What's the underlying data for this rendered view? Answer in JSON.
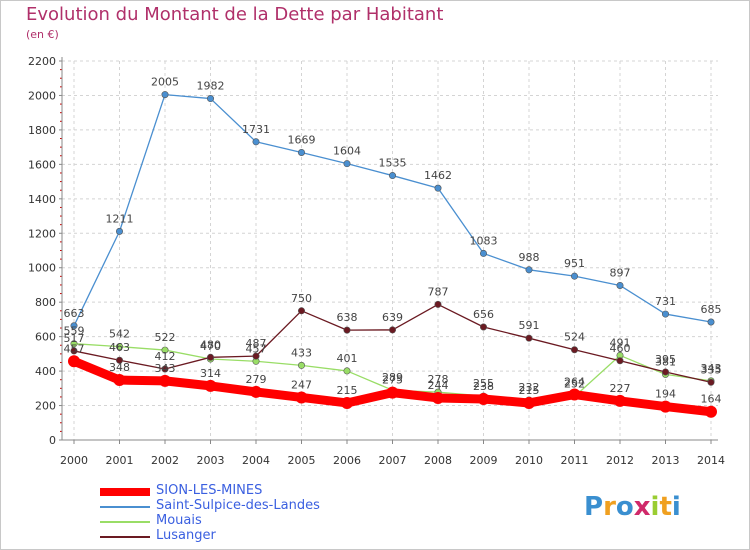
{
  "title": "Evolution du Montant de la Dette par Habitant",
  "unit": "(en €)",
  "logo_text": "Proxiti",
  "chart_data": {
    "type": "line",
    "title": "Evolution du Montant de la Dette par Habitant",
    "ylabel": "(en €)",
    "xlabel": "",
    "x": [
      "2000",
      "2001",
      "2002",
      "2003",
      "2004",
      "2005",
      "2006",
      "2007",
      "2008",
      "2009",
      "2010",
      "2011",
      "2012",
      "2013",
      "2014"
    ],
    "ylim": [
      0,
      2200
    ],
    "yticks": [
      0,
      200,
      400,
      600,
      800,
      1000,
      1200,
      1400,
      1600,
      1800,
      2000,
      2200
    ],
    "grid": true,
    "legend_position": "bottom-left",
    "series": [
      {
        "name": "SION-LES-MINES",
        "color": "#ff0000",
        "values": [
          457,
          348,
          343,
          314,
          279,
          247,
          215,
          275,
          244,
          238,
          215,
          264,
          227,
          194,
          164
        ]
      },
      {
        "name": "Saint-Sulpice-des-Landes",
        "color": "#4a8fd0",
        "values": [
          663,
          1211,
          2005,
          1982,
          1731,
          1669,
          1604,
          1535,
          1462,
          1083,
          988,
          951,
          897,
          731,
          685
        ]
      },
      {
        "name": "Mouais",
        "color": "#99dd66",
        "values": [
          559,
          542,
          522,
          470,
          457,
          433,
          401,
          289,
          278,
          255,
          232,
          252,
          491,
          381,
          343
        ]
      },
      {
        "name": "Lusanger",
        "color": "#6b1a22",
        "values": [
          517,
          463,
          412,
          480,
          487,
          750,
          638,
          639,
          787,
          656,
          591,
          524,
          460,
          395,
          335
        ]
      }
    ]
  }
}
